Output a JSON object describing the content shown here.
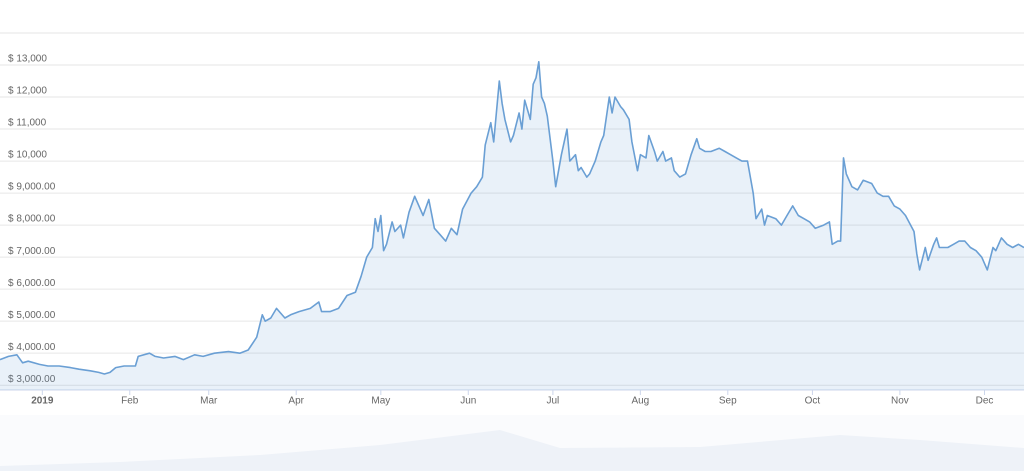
{
  "chart_data": {
    "type": "area",
    "x": [
      -15,
      -12,
      -9,
      -7,
      -5,
      -1,
      2,
      6,
      10,
      13,
      17,
      20,
      22,
      24,
      26,
      29,
      33,
      34,
      38,
      40,
      43,
      47,
      50,
      54,
      57,
      61,
      66,
      70,
      73,
      76,
      78,
      79,
      81,
      83,
      86,
      88,
      91,
      95,
      98,
      99,
      102,
      105,
      108,
      111,
      113,
      115,
      117,
      118,
      119,
      120,
      121,
      122,
      124,
      125,
      127,
      128,
      130,
      132,
      133,
      135,
      137,
      139,
      141,
      143,
      145,
      147,
      149,
      152,
      154,
      156,
      157,
      159,
      160,
      162,
      163,
      164,
      166,
      167,
      169,
      170,
      171,
      173,
      174,
      175,
      176,
      177,
      178,
      179,
      181,
      182,
      184,
      186,
      187,
      189,
      190,
      191,
      193,
      194,
      196,
      198,
      199,
      201,
      202,
      203,
      205,
      206,
      208,
      209,
      211,
      212,
      214,
      215,
      217,
      218,
      220,
      221,
      223,
      224,
      226,
      228,
      230,
      232,
      233,
      235,
      237,
      240,
      242,
      244,
      246,
      248,
      250,
      252,
      253,
      255,
      256,
      257,
      260,
      262,
      264,
      266,
      268,
      270,
      272,
      274,
      277,
      279,
      280,
      282,
      283,
      284,
      285,
      287,
      289,
      291,
      294,
      296,
      298,
      300,
      302,
      304,
      306,
      309,
      310,
      311,
      313,
      314,
      316,
      317,
      318,
      321,
      323,
      325,
      327,
      329,
      331,
      333,
      335,
      337,
      338,
      340,
      342,
      344,
      346,
      348
    ],
    "series": [
      {
        "color": "#6a9fd4",
        "values": [
          3800,
          3900,
          3950,
          3700,
          3750,
          3650,
          3600,
          3600,
          3550,
          3500,
          3450,
          3400,
          3350,
          3400,
          3550,
          3600,
          3600,
          3900,
          4000,
          3900,
          3850,
          3900,
          3800,
          3950,
          3900,
          4000,
          4050,
          4000,
          4100,
          4500,
          5200,
          5000,
          5100,
          5400,
          5100,
          5200,
          5300,
          5400,
          5600,
          5300,
          5300,
          5400,
          5800,
          5900,
          6400,
          7000,
          7300,
          8200,
          7800,
          8300,
          7200,
          7400,
          8100,
          7800,
          8000,
          7600,
          8400,
          8900,
          8700,
          8300,
          8800,
          7900,
          7700,
          7500,
          7900,
          7700,
          8500,
          9000,
          9200,
          9500,
          10500,
          11200,
          10600,
          12500,
          11800,
          11300,
          10600,
          10800,
          11500,
          11000,
          11900,
          11300,
          12400,
          12600,
          13100,
          12000,
          11800,
          11400,
          10000,
          9200,
          10200,
          11000,
          10000,
          10200,
          9700,
          9800,
          9500,
          9600,
          10000,
          10600,
          10800,
          12000,
          11500,
          12000,
          11700,
          11600,
          11300,
          10600,
          9700,
          10200,
          10100,
          10800,
          10300,
          10000,
          10300,
          10000,
          10100,
          9700,
          9500,
          9600,
          10200,
          10700,
          10400,
          10300,
          10300,
          10400,
          10300,
          10200,
          10100,
          10000,
          10000,
          9000,
          8200,
          8500,
          8000,
          8300,
          8200,
          8000,
          8300,
          8600,
          8300,
          8200,
          8100,
          7900,
          8000,
          8100,
          7400,
          7500,
          7500,
          10100,
          9600,
          9200,
          9100,
          9400,
          9300,
          9000,
          8900,
          8900,
          8600,
          8500,
          8300,
          7800,
          7100,
          6600,
          7300,
          6900,
          7400,
          7600,
          7300,
          7300,
          7400,
          7500,
          7500,
          7300,
          7200,
          7000,
          6600,
          7300,
          7200,
          7600,
          7400,
          7300,
          7400,
          7300
        ]
      }
    ],
    "xlim": [
      -15,
      348
    ],
    "xticks": [
      {
        "value": 0,
        "label": "2019"
      },
      {
        "value": 31,
        "label": "Feb"
      },
      {
        "value": 59,
        "label": "Mar"
      },
      {
        "value": 90,
        "label": "Apr"
      },
      {
        "value": 120,
        "label": "May"
      },
      {
        "value": 151,
        "label": "Jun"
      },
      {
        "value": 181,
        "label": "Jul"
      },
      {
        "value": 212,
        "label": "Aug"
      },
      {
        "value": 243,
        "label": "Sep"
      },
      {
        "value": 273,
        "label": "Oct"
      },
      {
        "value": 304,
        "label": "Nov"
      },
      {
        "value": 334,
        "label": "Dec"
      }
    ],
    "ylim": [
      2850,
      14000
    ],
    "yticks": [
      {
        "value": 3000,
        "label": "$ 3,000.00"
      },
      {
        "value": 4000,
        "label": "$ 4,000.00"
      },
      {
        "value": 5000,
        "label": "$ 5,000.00"
      },
      {
        "value": 6000,
        "label": "$ 6,000.00"
      },
      {
        "value": 7000,
        "label": "$ 7,000.00"
      },
      {
        "value": 8000,
        "label": "$ 8,000.00"
      },
      {
        "value": 9000,
        "label": "$ 9,000.00"
      },
      {
        "value": 10000,
        "label": "$ 10,000"
      },
      {
        "value": 11000,
        "label": "$ 11,000"
      },
      {
        "value": 12000,
        "label": "$ 12,000"
      },
      {
        "value": 13000,
        "label": "$ 13,000"
      }
    ],
    "grid": true
  }
}
